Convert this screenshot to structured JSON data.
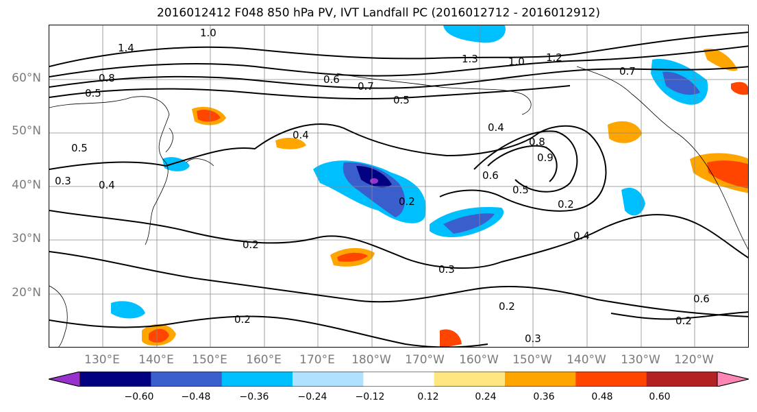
{
  "title": "2016012412 F048 850 hPa PV, IVT Landfall PC (2016012712 - 2016012912)",
  "lat_labels": [
    "60°N",
    "50°N",
    "40°N",
    "30°N",
    "20°N"
  ],
  "lon_labels": [
    "130°E",
    "140°E",
    "150°E",
    "160°E",
    "170°E",
    "180°W",
    "170°W",
    "160°W",
    "150°W",
    "140°W",
    "130°W",
    "120°W"
  ],
  "colorbar": {
    "ticks": [
      "−0.60",
      "−0.48",
      "−0.36",
      "−0.24",
      "−0.12",
      "0.12",
      "0.24",
      "0.36",
      "0.48",
      "0.60"
    ],
    "colors": [
      "#9932cc",
      "#000080",
      "#3a5fcd",
      "#00bfff",
      "#b0e2ff",
      "#ffffff",
      "#ffe680",
      "#ffa500",
      "#ff4500",
      "#b22222",
      "#ff85b4"
    ]
  },
  "contour_labels": [
    "1.0",
    "1.4",
    "0.8",
    "0.5",
    "0.5",
    "0.3",
    "0.4",
    "0.6",
    "0.7",
    "0.5",
    "1.3",
    "1.0",
    "1.2",
    "0.4",
    "0.4",
    "0.8",
    "0.9",
    "0.6",
    "0.2",
    "0.5",
    "0.2",
    "0.4",
    "0.2",
    "0.3",
    "0.2",
    "0.2",
    "0.3",
    "0.6",
    "0.2",
    "0.7"
  ]
}
